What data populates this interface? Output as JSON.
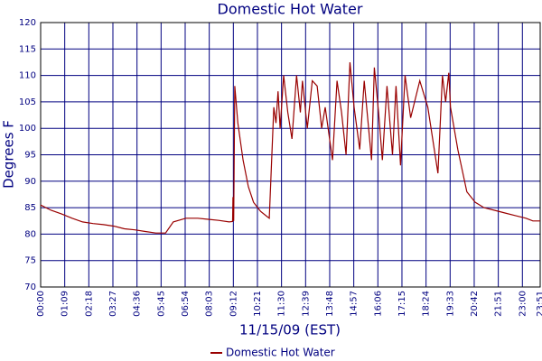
{
  "chart_data": {
    "type": "line",
    "title": "Domestic Hot Water",
    "x_label": "11/15/09 (EST)",
    "y_label": "Degrees F",
    "x": [
      "00:00",
      "00:30",
      "01:00",
      "01:30",
      "02:00",
      "02:30",
      "03:00",
      "03:30",
      "04:00",
      "04:30",
      "05:00",
      "05:30",
      "05:58",
      "06:20",
      "06:56",
      "07:30",
      "08:00",
      "08:30",
      "09:00",
      "09:10",
      "09:11",
      "09:13",
      "09:16",
      "09:25",
      "09:40",
      "09:55",
      "10:10",
      "10:30",
      "10:45",
      "10:55",
      "11:08",
      "11:14",
      "11:20",
      "11:26",
      "11:36",
      "11:48",
      "12:00",
      "12:13",
      "12:24",
      "12:30",
      "12:44",
      "12:58",
      "13:12",
      "13:25",
      "13:35",
      "13:56",
      "14:09",
      "14:22",
      "14:35",
      "14:46",
      "14:58",
      "15:14",
      "15:27",
      "15:48",
      "15:56",
      "16:08",
      "16:19",
      "16:32",
      "16:48",
      "16:58",
      "17:11",
      "17:24",
      "17:40",
      "18:06",
      "18:29",
      "18:58",
      "19:11",
      "19:20",
      "19:29",
      "19:34",
      "19:55",
      "20:21",
      "20:45",
      "21:10",
      "21:40",
      "22:10",
      "22:40",
      "23:10",
      "23:30",
      "23:51"
    ],
    "series": [
      {
        "name": "Domestic Hot Water",
        "color": "#990000",
        "values": [
          85.5,
          84.5,
          83.8,
          83,
          82.3,
          82,
          81.8,
          81.5,
          81,
          80.8,
          80.5,
          80.2,
          80.2,
          82.3,
          83,
          83,
          82.8,
          82.6,
          82.3,
          82.4,
          87,
          82.5,
          108,
          101,
          94,
          89,
          86,
          84.3,
          83.5,
          83,
          104,
          101,
          107,
          100,
          110,
          103,
          98,
          110,
          103,
          109,
          100,
          109,
          108,
          100,
          104,
          94,
          109,
          103,
          95,
          112.5,
          104,
          96,
          109,
          94,
          111.5,
          103,
          94,
          108,
          95,
          108,
          93,
          110,
          102,
          109,
          104,
          91.5,
          110,
          105,
          110.5,
          104,
          96,
          88,
          86,
          85,
          84.5,
          84,
          83.5,
          83,
          82.5,
          82.5
        ]
      }
    ],
    "xlim": [
      "00:00",
      "23:51"
    ],
    "xticks": [
      "00:00",
      "01:09",
      "02:18",
      "03:27",
      "04:36",
      "05:45",
      "06:54",
      "08:03",
      "09:12",
      "10:21",
      "11:30",
      "12:39",
      "13:48",
      "14:57",
      "16:06",
      "17:15",
      "18:24",
      "19:33",
      "20:42",
      "21:51",
      "23:00",
      "23:51"
    ],
    "ylim": [
      70,
      120
    ],
    "yticks": [
      70,
      75,
      80,
      85,
      90,
      95,
      100,
      105,
      110,
      115,
      120
    ],
    "grid": true
  }
}
